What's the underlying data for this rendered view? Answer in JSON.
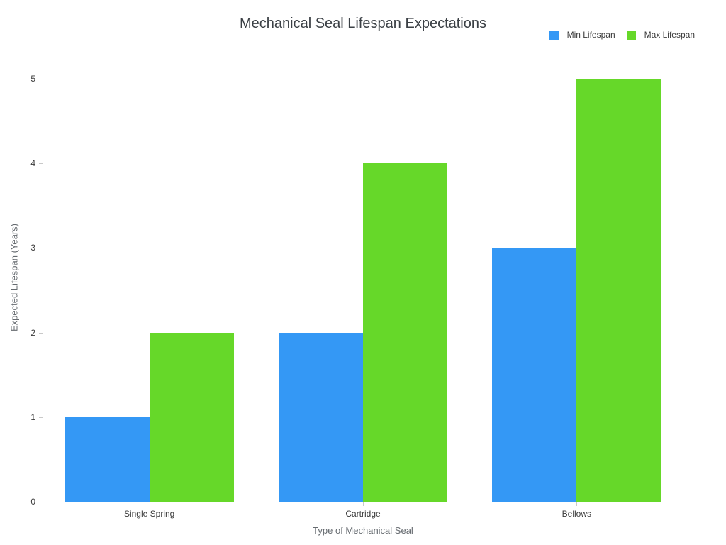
{
  "chart_data": {
    "type": "bar",
    "title": "Mechanical Seal Lifespan Expectations",
    "xlabel": "Type of Mechanical Seal",
    "ylabel": "Expected Lifespan (Years)",
    "categories": [
      "Single Spring",
      "Cartridge",
      "Bellows"
    ],
    "series": [
      {
        "name": "Min Lifespan",
        "color": "#3498f5",
        "values": [
          1,
          2,
          3
        ]
      },
      {
        "name": "Max Lifespan",
        "color": "#66d829",
        "values": [
          2,
          4,
          5
        ]
      }
    ],
    "ylim": [
      0,
      5.3
    ],
    "yticks": [
      0,
      1,
      2,
      3,
      4,
      5
    ],
    "grid": false,
    "legend_position": "top-right",
    "axis_line_color": "#d2d2d2",
    "title_color": "#3b4045",
    "tick_label_color": "#3b3b3b",
    "axis_title_color": "#666b70"
  }
}
